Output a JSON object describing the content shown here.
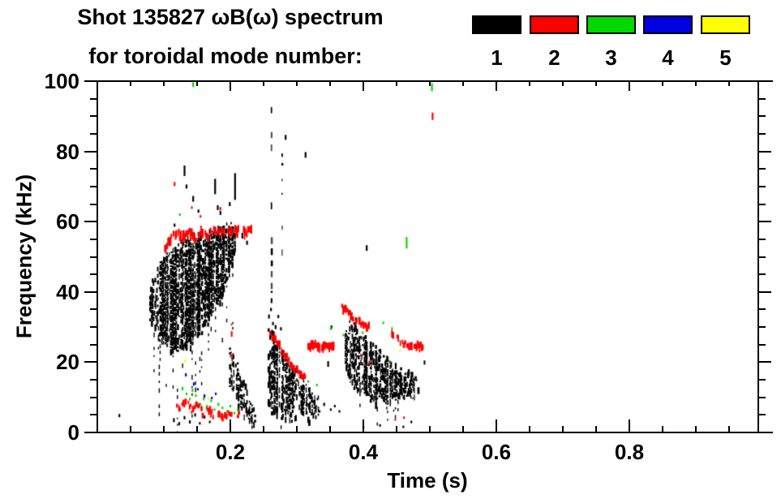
{
  "figure": {
    "title_line1": "Shot 135827 ωB(ω) spectrum",
    "title_line2": "for toroidal mode number:"
  },
  "chart_data": {
    "type": "scatter",
    "title": "Shot 135827 ωB(ω) spectrum for toroidal mode number: 1 2 3 4 5",
    "xlabel": "Time (s)",
    "ylabel": "Frequency (kHz)",
    "xlim": [
      0,
      1.0
    ],
    "ylim": [
      0,
      100
    ],
    "xticks": [
      0.2,
      0.4,
      0.6,
      0.8
    ],
    "xtick_labels": [
      "0.2",
      "0.4",
      "0.6",
      "0.8"
    ],
    "x_minor_step": 0.05,
    "yticks": [
      0,
      20,
      40,
      60,
      80,
      100
    ],
    "ytick_labels": [
      "0",
      "20",
      "40",
      "60",
      "80",
      "100"
    ],
    "y_minor_step": 5,
    "grid": false,
    "legend": {
      "position": "top-right",
      "entries": [
        {
          "label": "1",
          "mode": 1,
          "color": "#000000"
        },
        {
          "label": "2",
          "mode": 2,
          "color": "#ff0000"
        },
        {
          "label": "3",
          "mode": 3,
          "color": "#00d800"
        },
        {
          "label": "4",
          "mode": 4,
          "color": "#0000e0"
        },
        {
          "label": "5",
          "mode": 5,
          "color": "#ffff00"
        }
      ]
    },
    "mode_colors": {
      "1": "#000000",
      "2": "#ff0000",
      "3": "#00d800",
      "4": "#0000e0",
      "5": "#ffff00"
    },
    "features": [
      {
        "mode": 1,
        "kind": "blob",
        "spine": [
          [
            0.078,
            33,
            40
          ],
          [
            0.085,
            30,
            44
          ],
          [
            0.095,
            27,
            48
          ],
          [
            0.105,
            25,
            50
          ],
          [
            0.115,
            24,
            52
          ],
          [
            0.13,
            25,
            54
          ],
          [
            0.145,
            27,
            55
          ],
          [
            0.16,
            30,
            56
          ],
          [
            0.175,
            34,
            57
          ],
          [
            0.19,
            41,
            58
          ],
          [
            0.2,
            47,
            58.5
          ],
          [
            0.207,
            51,
            58
          ]
        ],
        "fill": 0.78,
        "tail_prob": 0.22,
        "tail_reach": 24
      },
      {
        "mode": 1,
        "kind": "blob",
        "spine": [
          [
            0.198,
            14,
            23
          ],
          [
            0.205,
            10,
            21
          ],
          [
            0.213,
            7,
            17
          ],
          [
            0.222,
            4,
            12
          ],
          [
            0.23,
            2.5,
            7
          ],
          [
            0.236,
            2,
            5
          ]
        ],
        "fill": 0.6,
        "tail_prob": 0.05,
        "tail_reach": 3
      },
      {
        "mode": 1,
        "kind": "blob",
        "spine": [
          [
            0.256,
            8,
            30
          ],
          [
            0.262,
            6,
            28
          ],
          [
            0.27,
            5.5,
            25
          ],
          [
            0.28,
            5,
            22
          ],
          [
            0.29,
            4.5,
            19
          ],
          [
            0.3,
            4.5,
            16
          ],
          [
            0.31,
            4.5,
            14
          ],
          [
            0.32,
            5,
            11
          ],
          [
            0.332,
            5.5,
            10
          ]
        ],
        "fill": 0.62,
        "tail_prob": 0.08,
        "tail_reach": 4
      },
      {
        "mode": 1,
        "kind": "blob",
        "spine": [
          [
            0.372,
            20,
            28
          ],
          [
            0.378,
            16,
            30.5
          ],
          [
            0.386,
            13,
            32
          ],
          [
            0.395,
            11,
            28
          ],
          [
            0.405,
            10,
            26
          ],
          [
            0.415,
            9.5,
            24
          ],
          [
            0.425,
            9,
            22
          ],
          [
            0.435,
            9,
            20
          ],
          [
            0.445,
            9.5,
            18.5
          ],
          [
            0.455,
            10,
            17.5
          ],
          [
            0.465,
            10.5,
            16.5
          ],
          [
            0.475,
            11,
            15.5
          ],
          [
            0.483,
            11.5,
            14
          ]
        ],
        "fill": 0.7,
        "tail_prob": 0.12,
        "tail_reach": 8
      },
      {
        "mode": 1,
        "kind": "vstreak",
        "t": 0.262,
        "segs": [
          [
            0,
            100
          ]
        ],
        "fill": 0.42,
        "shade": "#4a4a4a"
      },
      {
        "mode": 1,
        "kind": "vstreak",
        "t": 0.278,
        "segs": [
          [
            46,
            81
          ]
        ],
        "fill": 0.3,
        "shade": "#666666"
      },
      {
        "mode": 1,
        "kind": "vstreak",
        "t": 0.492,
        "segs": [
          [
            17,
            20.5
          ]
        ],
        "fill": 0.8,
        "shade": "#777777"
      },
      {
        "mode": 1,
        "kind": "specks",
        "pts": [
          [
            0.131,
            74.5,
            13
          ],
          [
            0.134,
            70,
            5
          ],
          [
            0.144,
            66.5,
            7
          ],
          [
            0.152,
            63,
            4
          ],
          [
            0.177,
            70,
            19
          ],
          [
            0.181,
            64,
            6
          ],
          [
            0.185,
            62.5,
            5
          ],
          [
            0.207,
            70,
            33
          ],
          [
            0.199,
            65,
            5
          ],
          [
            0.218,
            56,
            7
          ],
          [
            0.225,
            54,
            5
          ],
          [
            0.116,
            59,
            4
          ],
          [
            0.313,
            79,
            7
          ],
          [
            0.405,
            52.5,
            7
          ],
          [
            0.352,
            30,
            4
          ],
          [
            0.283,
            84,
            6
          ]
        ]
      },
      {
        "mode": 1,
        "kind": "specks",
        "pts": [
          [
            0.033,
            4.8,
            4
          ],
          [
            0.115,
            3.5,
            5
          ],
          [
            0.123,
            2.5,
            4
          ],
          [
            0.131,
            4.2,
            4
          ],
          [
            0.139,
            3,
            4
          ],
          [
            0.147,
            5,
            4
          ],
          [
            0.154,
            2.6,
            3
          ],
          [
            0.161,
            4.4,
            4
          ],
          [
            0.169,
            3,
            3
          ]
        ]
      },
      {
        "mode": 1,
        "kind": "specks",
        "pts": [
          [
            0.328,
            7,
            4
          ],
          [
            0.334,
            6,
            3
          ],
          [
            0.341,
            8,
            4
          ],
          [
            0.347,
            19.5,
            7
          ],
          [
            0.351,
            6.5,
            3
          ],
          [
            0.357,
            7.5,
            3
          ],
          [
            0.364,
            6,
            3
          ],
          [
            0.331,
            9.5,
            3
          ],
          [
            0.46,
            1.6,
            3
          ],
          [
            0.472,
            3,
            3
          ],
          [
            0.4,
            1.4,
            3
          ],
          [
            0.425,
            2,
            3
          ]
        ]
      },
      {
        "mode": 1,
        "kind": "specks",
        "pts": [
          [
            0.258,
            33,
            5
          ],
          [
            0.261,
            35,
            4
          ],
          [
            0.264,
            31,
            4
          ],
          [
            0.268,
            30,
            5
          ],
          [
            0.272,
            33,
            4
          ],
          [
            0.276,
            29.5,
            4
          ]
        ]
      },
      {
        "mode": 2,
        "kind": "track",
        "pts": [
          [
            0.1,
            51
          ],
          [
            0.108,
            55
          ],
          [
            0.118,
            56.5
          ],
          [
            0.128,
            55
          ],
          [
            0.138,
            57
          ],
          [
            0.148,
            55.5
          ],
          [
            0.158,
            57.5
          ],
          [
            0.168,
            56
          ],
          [
            0.178,
            57.5
          ],
          [
            0.188,
            57
          ],
          [
            0.198,
            57.5
          ],
          [
            0.208,
            58
          ],
          [
            0.22,
            57
          ],
          [
            0.232,
            58.5
          ]
        ],
        "thick": 2.4,
        "jit": 1.2,
        "fill": 0.72
      },
      {
        "mode": 2,
        "kind": "track",
        "pts": [
          [
            0.118,
            8.5
          ],
          [
            0.126,
            7
          ],
          [
            0.134,
            9
          ],
          [
            0.142,
            6.5
          ],
          [
            0.15,
            8
          ],
          [
            0.158,
            5.5
          ],
          [
            0.166,
            7
          ],
          [
            0.174,
            5
          ],
          [
            0.182,
            6
          ],
          [
            0.19,
            4.5
          ],
          [
            0.198,
            5.5
          ],
          [
            0.207,
            4.5
          ],
          [
            0.216,
            5.5
          ]
        ],
        "thick": 1.6,
        "jit": 0.8,
        "fill": 0.65
      },
      {
        "mode": 2,
        "kind": "vstreak",
        "t": 0.202,
        "segs": [
          [
            17,
            31
          ]
        ],
        "fill": 0.5
      },
      {
        "mode": 2,
        "kind": "track",
        "pts": [
          [
            0.258,
            28
          ],
          [
            0.266,
            26.5
          ],
          [
            0.274,
            24.5
          ],
          [
            0.282,
            22
          ],
          [
            0.29,
            20
          ],
          [
            0.298,
            18
          ],
          [
            0.306,
            16.5
          ],
          [
            0.313,
            15.3
          ]
        ],
        "thick": 2,
        "jit": 0.7,
        "fill": 0.85
      },
      {
        "mode": 2,
        "kind": "track",
        "pts": [
          [
            0.317,
            24.5
          ],
          [
            0.327,
            25
          ],
          [
            0.336,
            24
          ],
          [
            0.345,
            24.8
          ],
          [
            0.356,
            24.2
          ]
        ],
        "thick": 2.6,
        "jit": 0.5,
        "fill": 0.95
      },
      {
        "mode": 2,
        "kind": "track",
        "pts": [
          [
            0.368,
            35.5
          ],
          [
            0.378,
            34
          ],
          [
            0.388,
            32
          ],
          [
            0.398,
            30.8
          ],
          [
            0.408,
            30
          ]
        ],
        "thick": 2,
        "jit": 0.6,
        "fill": 0.8
      },
      {
        "mode": 2,
        "kind": "track",
        "pts": [
          [
            0.443,
            28
          ],
          [
            0.452,
            26.5
          ],
          [
            0.462,
            25.2
          ],
          [
            0.472,
            24.2
          ],
          [
            0.481,
            24.7
          ],
          [
            0.49,
            24.2
          ]
        ],
        "thick": 2,
        "jit": 0.6,
        "fill": 0.8
      },
      {
        "mode": 2,
        "kind": "specks",
        "pts": [
          [
            0.116,
            70.7,
            5
          ],
          [
            0.185,
            63.7,
            4
          ],
          [
            0.142,
            64,
            3
          ],
          [
            0.155,
            61.5,
            3
          ],
          [
            0.504,
            90,
            9
          ],
          [
            0.409,
            20,
            4
          ],
          [
            0.398,
            22,
            3
          ],
          [
            0.448,
            3.7,
            3
          ],
          [
            0.461,
            4.2,
            3
          ]
        ]
      },
      {
        "mode": 3,
        "kind": "specks",
        "pts": [
          [
            0.128,
            12.5,
            4
          ],
          [
            0.134,
            11,
            3
          ],
          [
            0.139,
            9.5,
            3
          ],
          [
            0.143,
            12,
            4
          ],
          [
            0.148,
            10.5,
            3
          ],
          [
            0.155,
            8,
            3
          ],
          [
            0.16,
            9.6,
            4
          ],
          [
            0.165,
            7.5,
            3
          ],
          [
            0.171,
            9,
            3
          ],
          [
            0.176,
            6.5,
            3
          ],
          [
            0.182,
            8,
            4
          ],
          [
            0.188,
            7,
            3
          ],
          [
            0.195,
            6,
            3
          ],
          [
            0.2,
            7.5,
            3
          ],
          [
            0.206,
            5.5,
            3
          ],
          [
            0.211,
            6.5,
            3
          ]
        ]
      },
      {
        "mode": 3,
        "kind": "specks",
        "pts": [
          [
            0.317,
            14.5,
            3
          ],
          [
            0.33,
            13.5,
            3
          ],
          [
            0.351,
            29.6,
            4
          ],
          [
            0.37,
            27.7,
            3
          ],
          [
            0.399,
            28.4,
            3
          ],
          [
            0.43,
            31.2,
            3
          ],
          [
            0.443,
            29.6,
            3
          ],
          [
            0.439,
            20.3,
            3
          ],
          [
            0.124,
            62,
            3
          ]
        ]
      },
      {
        "mode": 3,
        "kind": "specks",
        "pts": [
          [
            0.465,
            54,
            14
          ],
          [
            0.503,
            98.3,
            10
          ],
          [
            0.144,
            99,
            6
          ]
        ]
      },
      {
        "mode": 4,
        "kind": "specks",
        "pts": [
          [
            0.133,
            16.4,
            4
          ],
          [
            0.145,
            13.8,
            4
          ],
          [
            0.151,
            12.3,
            3
          ],
          [
            0.161,
            10.4,
            4
          ],
          [
            0.172,
            9.8,
            3
          ],
          [
            0.178,
            11,
            3
          ]
        ]
      },
      {
        "mode": 5,
        "kind": "specks",
        "pts": [
          [
            0.132,
            20.3,
            4
          ],
          [
            0.167,
            9.5,
            3
          ],
          [
            0.455,
            23.3,
            3
          ]
        ]
      }
    ]
  }
}
